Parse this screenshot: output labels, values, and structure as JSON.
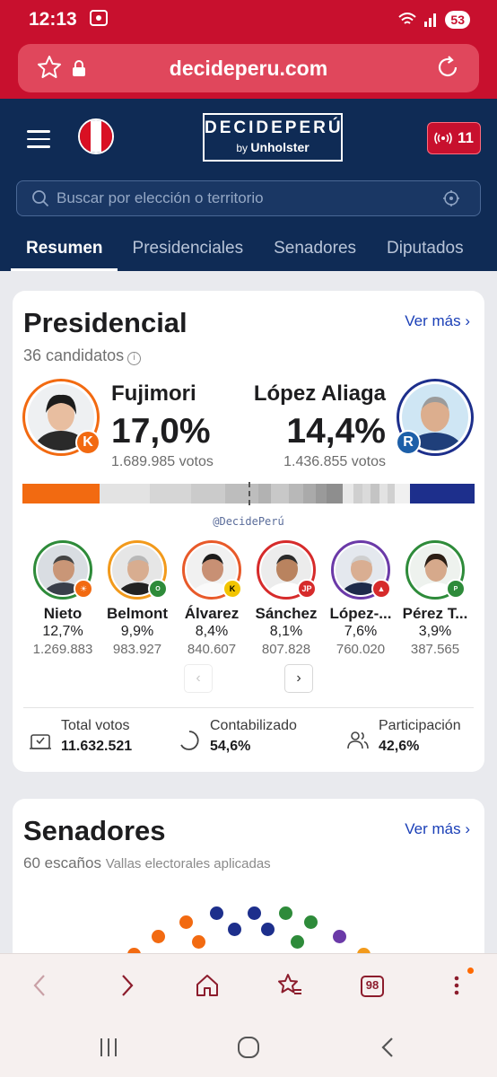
{
  "status_bar": {
    "time": "12:13",
    "battery": "53"
  },
  "browser": {
    "url": "decideperu.com"
  },
  "header": {
    "logo_main": "DECIDEPERÚ",
    "logo_by": "by",
    "logo_brand": "Unholster",
    "live_count": "11",
    "search_placeholder": "Buscar por elección o territorio",
    "tabs": [
      {
        "label": "Resumen",
        "active": true
      },
      {
        "label": "Presidenciales",
        "active": false
      },
      {
        "label": "Senadores",
        "active": false
      },
      {
        "label": "Diputados",
        "active": false
      }
    ]
  },
  "presidential": {
    "title": "Presidencial",
    "see_more": "Ver más",
    "candidates_count": "36 candidatos",
    "leaders": [
      {
        "name": "Fujimori",
        "percent": "17,0%",
        "votes": "1.689.985 votos",
        "party_badge": "K",
        "color": "#f26a11"
      },
      {
        "name": "López Aliaga",
        "percent": "14,4%",
        "votes": "1.436.855 votos",
        "party_badge": "R",
        "color": "#1d2f8c"
      }
    ],
    "watermark": "@DecidePerú",
    "candidates": [
      {
        "name": "Nieto",
        "percent": "12,7%",
        "votes": "1.269.883",
        "color": "#2e8b3a"
      },
      {
        "name": "Belmont",
        "percent": "9,9%",
        "votes": "983.927",
        "color": "#f29a1c"
      },
      {
        "name": "Álvarez",
        "percent": "8,4%",
        "votes": "840.607",
        "color": "#e85a2a"
      },
      {
        "name": "Sánchez",
        "percent": "8,1%",
        "votes": "807.828",
        "color": "#d62b2b"
      },
      {
        "name": "López-...",
        "percent": "7,6%",
        "votes": "760.020",
        "color": "#6b3aa8"
      },
      {
        "name": "Pérez T...",
        "percent": "3,9%",
        "votes": "387.565",
        "color": "#2e8b3a"
      }
    ],
    "stats": [
      {
        "label": "Total votos",
        "value": "11.632.521"
      },
      {
        "label": "Contabilizado",
        "value": "54,6%"
      },
      {
        "label": "Participación",
        "value": "42,6%"
      }
    ]
  },
  "senators": {
    "title": "Senadores",
    "see_more": "Ver más",
    "seats": "60 escaños",
    "note": "Vallas electorales aplicadas"
  },
  "bottom_toolbar": {
    "tabs_count": "98"
  }
}
